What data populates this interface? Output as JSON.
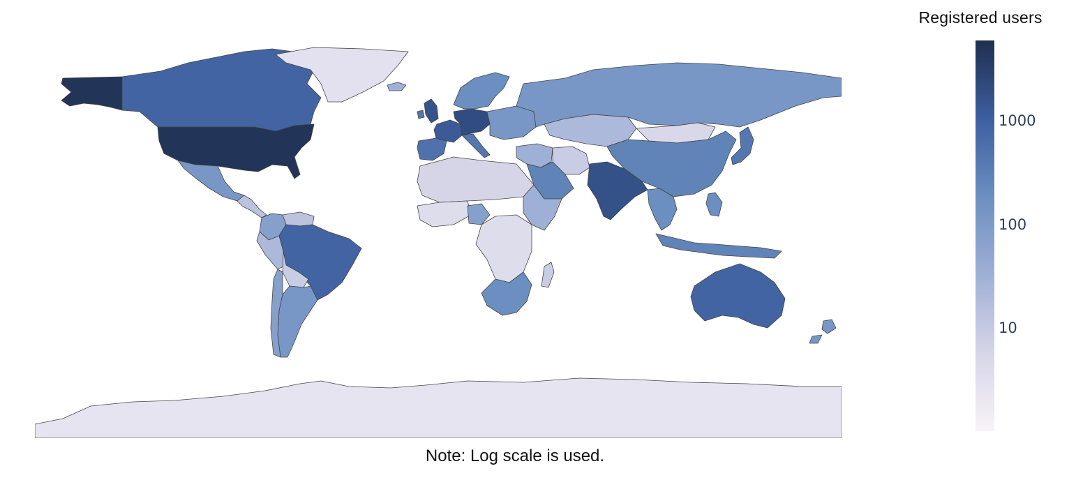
{
  "colorbar": {
    "title": "Registered users",
    "scale": "log",
    "min_value": 1,
    "max_value": 6000,
    "ticks": [
      {
        "value": 1000,
        "label": "1000"
      },
      {
        "value": 100,
        "label": "100"
      },
      {
        "value": 10,
        "label": "10"
      }
    ],
    "colors": [
      "#f7f3f9",
      "#d6d5e8",
      "#9fb0d6",
      "#6b8fc0",
      "#3d5fa0",
      "#1f2f4f"
    ]
  },
  "note": "Note: Log scale is used.",
  "map": {
    "projection": "equirectangular",
    "ocean_color": "#ffffff",
    "border_color": "#444444",
    "regions": [
      {
        "name": "Alaska / United States",
        "level": 0.98
      },
      {
        "name": "United States",
        "level": 0.98
      },
      {
        "name": "Canada",
        "level": 0.78
      },
      {
        "name": "Greenland",
        "level": 0.12
      },
      {
        "name": "Mexico",
        "level": 0.55
      },
      {
        "name": "Central America",
        "level": 0.3
      },
      {
        "name": "Colombia",
        "level": 0.5
      },
      {
        "name": "Venezuela",
        "level": 0.3
      },
      {
        "name": "Peru",
        "level": 0.35
      },
      {
        "name": "Brazil",
        "level": 0.78
      },
      {
        "name": "Bolivia",
        "level": 0.25
      },
      {
        "name": "Argentina",
        "level": 0.55
      },
      {
        "name": "Chile",
        "level": 0.5
      },
      {
        "name": "Iceland",
        "level": 0.4
      },
      {
        "name": "United Kingdom",
        "level": 0.85
      },
      {
        "name": "Ireland",
        "level": 0.7
      },
      {
        "name": "Spain / Portugal",
        "level": 0.72
      },
      {
        "name": "France",
        "level": 0.82
      },
      {
        "name": "Germany / Central Europe",
        "level": 0.88
      },
      {
        "name": "Scandinavia",
        "level": 0.6
      },
      {
        "name": "Eastern Europe",
        "level": 0.55
      },
      {
        "name": "Italy",
        "level": 0.7
      },
      {
        "name": "Russia",
        "level": 0.55
      },
      {
        "name": "Kazakhstan / Central Asia",
        "level": 0.35
      },
      {
        "name": "Mongolia",
        "level": 0.18
      },
      {
        "name": "China",
        "level": 0.65
      },
      {
        "name": "Japan",
        "level": 0.7
      },
      {
        "name": "Middle East",
        "level": 0.4
      },
      {
        "name": "Saudi Arabia",
        "level": 0.65
      },
      {
        "name": "Iran",
        "level": 0.25
      },
      {
        "name": "India",
        "level": 0.86
      },
      {
        "name": "Southeast Asia",
        "level": 0.6
      },
      {
        "name": "Indonesia",
        "level": 0.65
      },
      {
        "name": "Philippines",
        "level": 0.6
      },
      {
        "name": "North Africa",
        "level": 0.2
      },
      {
        "name": "West Africa",
        "level": 0.15
      },
      {
        "name": "Nigeria",
        "level": 0.5
      },
      {
        "name": "Central Africa",
        "level": 0.15
      },
      {
        "name": "East Africa",
        "level": 0.4
      },
      {
        "name": "Southern Africa",
        "level": 0.6
      },
      {
        "name": "Madagascar",
        "level": 0.25
      },
      {
        "name": "Australia",
        "level": 0.78
      },
      {
        "name": "New Zealand",
        "level": 0.55
      },
      {
        "name": "Antarctica",
        "level": 0.1
      }
    ]
  }
}
